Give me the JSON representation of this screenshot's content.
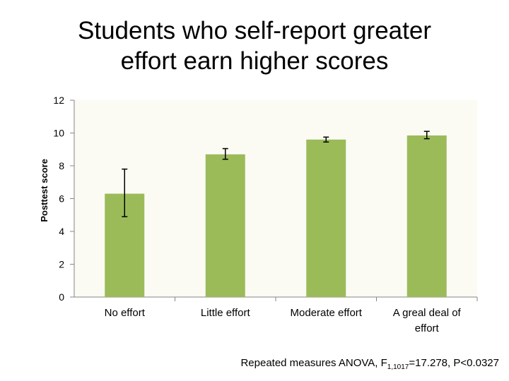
{
  "title_lines": [
    "Students who self-report greater",
    "effort earn higher scores"
  ],
  "chart_data": {
    "type": "bar",
    "title": "Students who self-report greater effort earn higher scores",
    "categories": [
      "No effort",
      "Little effort",
      "Moderate effort",
      "A greal deal of effort"
    ],
    "category_lines": [
      [
        "No effort"
      ],
      [
        "Little effort"
      ],
      [
        "Moderate effort"
      ],
      [
        "A greal deal of",
        "effort"
      ]
    ],
    "values": [
      6.3,
      8.7,
      9.6,
      9.85
    ],
    "error_low": [
      4.9,
      8.4,
      9.45,
      9.65
    ],
    "error_high": [
      7.8,
      9.05,
      9.75,
      10.1
    ],
    "ylabel": "Posttest score",
    "xlabel": "",
    "ylim": [
      0,
      12
    ],
    "yticks": [
      0,
      2,
      4,
      6,
      8,
      10,
      12
    ],
    "bar_color": "#9bbb59",
    "plot_bg": "#fbfbf4",
    "grid": false
  },
  "footnote": {
    "prefix": "Repeated measures ANOVA, F",
    "subscript": "1,1017",
    "suffix": "=17.278, P<0.0327"
  }
}
